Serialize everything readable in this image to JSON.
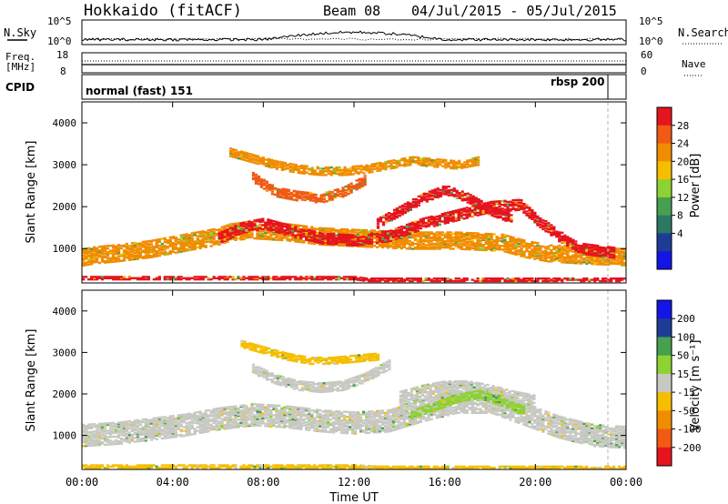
{
  "header": {
    "station": "Hokkaido (fitACF)",
    "beam": "Beam 08",
    "dates": "04/Jul/2015 - 05/Jul/2015"
  },
  "panels": {
    "nsky_label": "N.Sky",
    "nsearch_label": "N.Search",
    "nsky_ticks": [
      "10^5",
      "10^0"
    ],
    "nsearch_ticks": [
      "10^5",
      "10^0"
    ],
    "freq_label_1": "Freq.",
    "freq_label_2": "[MHz]",
    "freq_ticks": [
      "18",
      "8"
    ],
    "nave_label": "Nave",
    "nave_ticks": [
      "60",
      "0"
    ],
    "cpid_label": "CPID",
    "cpid_mode_1": "normal (fast) 151",
    "cpid_mode_2": "rbsp 200"
  },
  "colors": {
    "red": "#e6141e",
    "orange_red": "#f05a14",
    "orange": "#f08c00",
    "amber": "#f5be00",
    "light_green": "#8cd232",
    "green": "#46a050",
    "teal": "#2d7864",
    "navy": "#1e3c96",
    "blue": "#1414e6",
    "grey": "#c8c8c3"
  },
  "chart_data": [
    {
      "type": "heatmap",
      "name": "Power",
      "xlabel": "",
      "ylabel": "Slant Range [km]",
      "x_ticks": [
        "00:00",
        "04:00",
        "08:00",
        "12:00",
        "16:00",
        "20:00",
        "00:00"
      ],
      "xlim_hours": [
        0,
        24
      ],
      "ylim_km": [
        180,
        4500
      ],
      "y_ticks": [
        1000,
        2000,
        3000,
        4000
      ],
      "colorbar_label": "Power [dB]",
      "colorbar_ticks": [
        "28",
        "24",
        "20",
        "16",
        "12",
        "8",
        "4"
      ],
      "colorbar_colors": [
        "#e6141e",
        "#f05a14",
        "#f08c00",
        "#f5be00",
        "#8cd232",
        "#46a050",
        "#2d7864",
        "#1e3c96",
        "#1414e6"
      ],
      "bands": [
        {
          "x": [
            0,
            0.5,
            1.5,
            3,
            4,
            5,
            6,
            6.5,
            7.5,
            9,
            10.5,
            12.5,
            14.5,
            16.5,
            18.5,
            19.5,
            20.5,
            22,
            24
          ],
          "y": [
            800,
            850,
            900,
            1000,
            1100,
            1200,
            1300,
            1400,
            1450,
            1400,
            1300,
            1250,
            1200,
            1200,
            1150,
            1000,
            900,
            850,
            800
          ],
          "w": 420,
          "color": "#f08c00"
        },
        {
          "x": [
            6,
            7,
            8,
            9,
            10.5,
            12,
            13.5,
            15,
            16.5,
            18,
            19.3,
            20,
            21,
            22,
            23.5
          ],
          "y": [
            1250,
            1500,
            1600,
            1450,
            1250,
            1200,
            1300,
            1600,
            1800,
            2000,
            2050,
            1700,
            1300,
            1000,
            900
          ],
          "w": 260,
          "color": "#e6141e"
        },
        {
          "x": [
            7.5,
            8.5,
            9.5,
            10.5,
            11.5,
            12.5
          ],
          "y": [
            2700,
            2350,
            2250,
            2200,
            2350,
            2650
          ],
          "w": 220,
          "color": "#f05a14"
        },
        {
          "x": [
            6.5,
            7.5,
            8.5,
            9.5,
            10.5,
            11.5,
            12.5,
            13.5,
            14.5,
            15.5,
            16.5,
            17.5
          ],
          "y": [
            3300,
            3150,
            3000,
            2900,
            2850,
            2850,
            2900,
            3000,
            3100,
            3050,
            3000,
            3100
          ],
          "w": 200,
          "color": "#f08c00"
        },
        {
          "x": [
            13,
            14,
            15,
            16,
            17,
            18,
            19
          ],
          "y": [
            1600,
            1900,
            2200,
            2400,
            2200,
            1900,
            1700
          ],
          "w": 220,
          "color": "#e6141e"
        },
        {
          "x": [
            0,
            12,
            12.5,
            13.5,
            17,
            24
          ],
          "y": [
            300,
            300,
            260,
            260,
            260,
            260
          ],
          "w": 80,
          "color": "#e6141e"
        }
      ]
    },
    {
      "type": "heatmap",
      "name": "Velocity",
      "xlabel": "Time UT",
      "ylabel": "Slant Range [km]",
      "x_ticks": [
        "00:00",
        "04:00",
        "08:00",
        "12:00",
        "16:00",
        "20:00",
        "00:00"
      ],
      "xlim_hours": [
        0,
        24
      ],
      "ylim_km": [
        180,
        4500
      ],
      "y_ticks": [
        1000,
        2000,
        3000,
        4000
      ],
      "colorbar_label": "Velocity [m s⁻¹]",
      "colorbar_ticks": [
        "200",
        "100",
        "50",
        "15",
        "-15",
        "-50",
        "-100",
        "-200"
      ],
      "colorbar_colors": [
        "#1414e6",
        "#1e3c96",
        "#46a050",
        "#8cd232",
        "#c8c8c3",
        "#f5be00",
        "#f08c00",
        "#f05a14",
        "#e6141e"
      ],
      "bands": [
        {
          "x": [
            0,
            1.5,
            3,
            4.5,
            6,
            7.5,
            9,
            10.5,
            12,
            13.5,
            15,
            16.5,
            18,
            19.5,
            21,
            22.5,
            24
          ],
          "y": [
            1000,
            1050,
            1150,
            1250,
            1400,
            1500,
            1450,
            1350,
            1300,
            1350,
            1600,
            1800,
            1800,
            1500,
            1200,
            1000,
            950
          ],
          "w": 520,
          "color": "#c8c8c3"
        },
        {
          "x": [
            7.5,
            8.5,
            9.5,
            10.5,
            11.5,
            12.5,
            13.5
          ],
          "y": [
            2600,
            2350,
            2200,
            2150,
            2200,
            2400,
            2700
          ],
          "w": 220,
          "color": "#c8c8c3"
        },
        {
          "x": [
            14,
            15,
            16,
            17,
            18,
            19,
            20
          ],
          "y": [
            1900,
            2050,
            2150,
            2150,
            2050,
            1900,
            1800
          ],
          "w": 360,
          "color": "#c8c8c3"
        },
        {
          "x": [
            14.5,
            15.5,
            16.5,
            17.5,
            18.5,
            19.5
          ],
          "y": [
            1500,
            1700,
            1900,
            2000,
            1800,
            1600
          ],
          "w": 200,
          "color": "#8cd232"
        },
        {
          "x": [
            7,
            8,
            9,
            10,
            11,
            12,
            13
          ],
          "y": [
            3200,
            3050,
            2900,
            2800,
            2800,
            2850,
            2900
          ],
          "w": 160,
          "color": "#f5be00"
        },
        {
          "x": [
            0,
            12,
            13,
            24
          ],
          "y": [
            260,
            260,
            230,
            230
          ],
          "w": 90,
          "color": "#f5be00"
        }
      ]
    }
  ]
}
